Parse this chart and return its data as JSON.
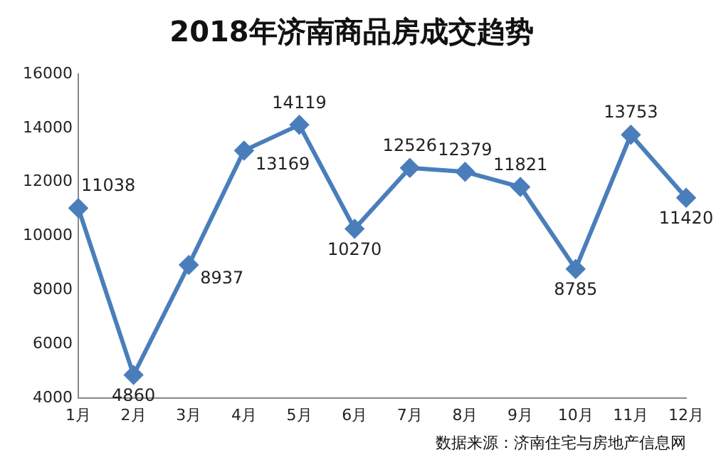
{
  "chart_data": {
    "type": "line",
    "title": "2018年济南商品房成交趋势",
    "categories": [
      "1月",
      "2月",
      "3月",
      "4月",
      "5月",
      "6月",
      "7月",
      "8月",
      "9月",
      "10月",
      "11月",
      "12月"
    ],
    "series": [
      {
        "color": "#4a7ebb",
        "values": [
          11038,
          4860,
          8937,
          13169,
          14119,
          10270,
          12526,
          12379,
          11821,
          8785,
          13753,
          11420
        ]
      }
    ],
    "ylim": [
      4000,
      16000
    ],
    "yticks": [
      4000,
      6000,
      8000,
      10000,
      12000,
      14000,
      16000
    ],
    "grid": false,
    "legend": false,
    "marker": "diamond",
    "data_labels": true,
    "annotations": [
      "数据来源：济南住宅与房地产信息网"
    ]
  }
}
